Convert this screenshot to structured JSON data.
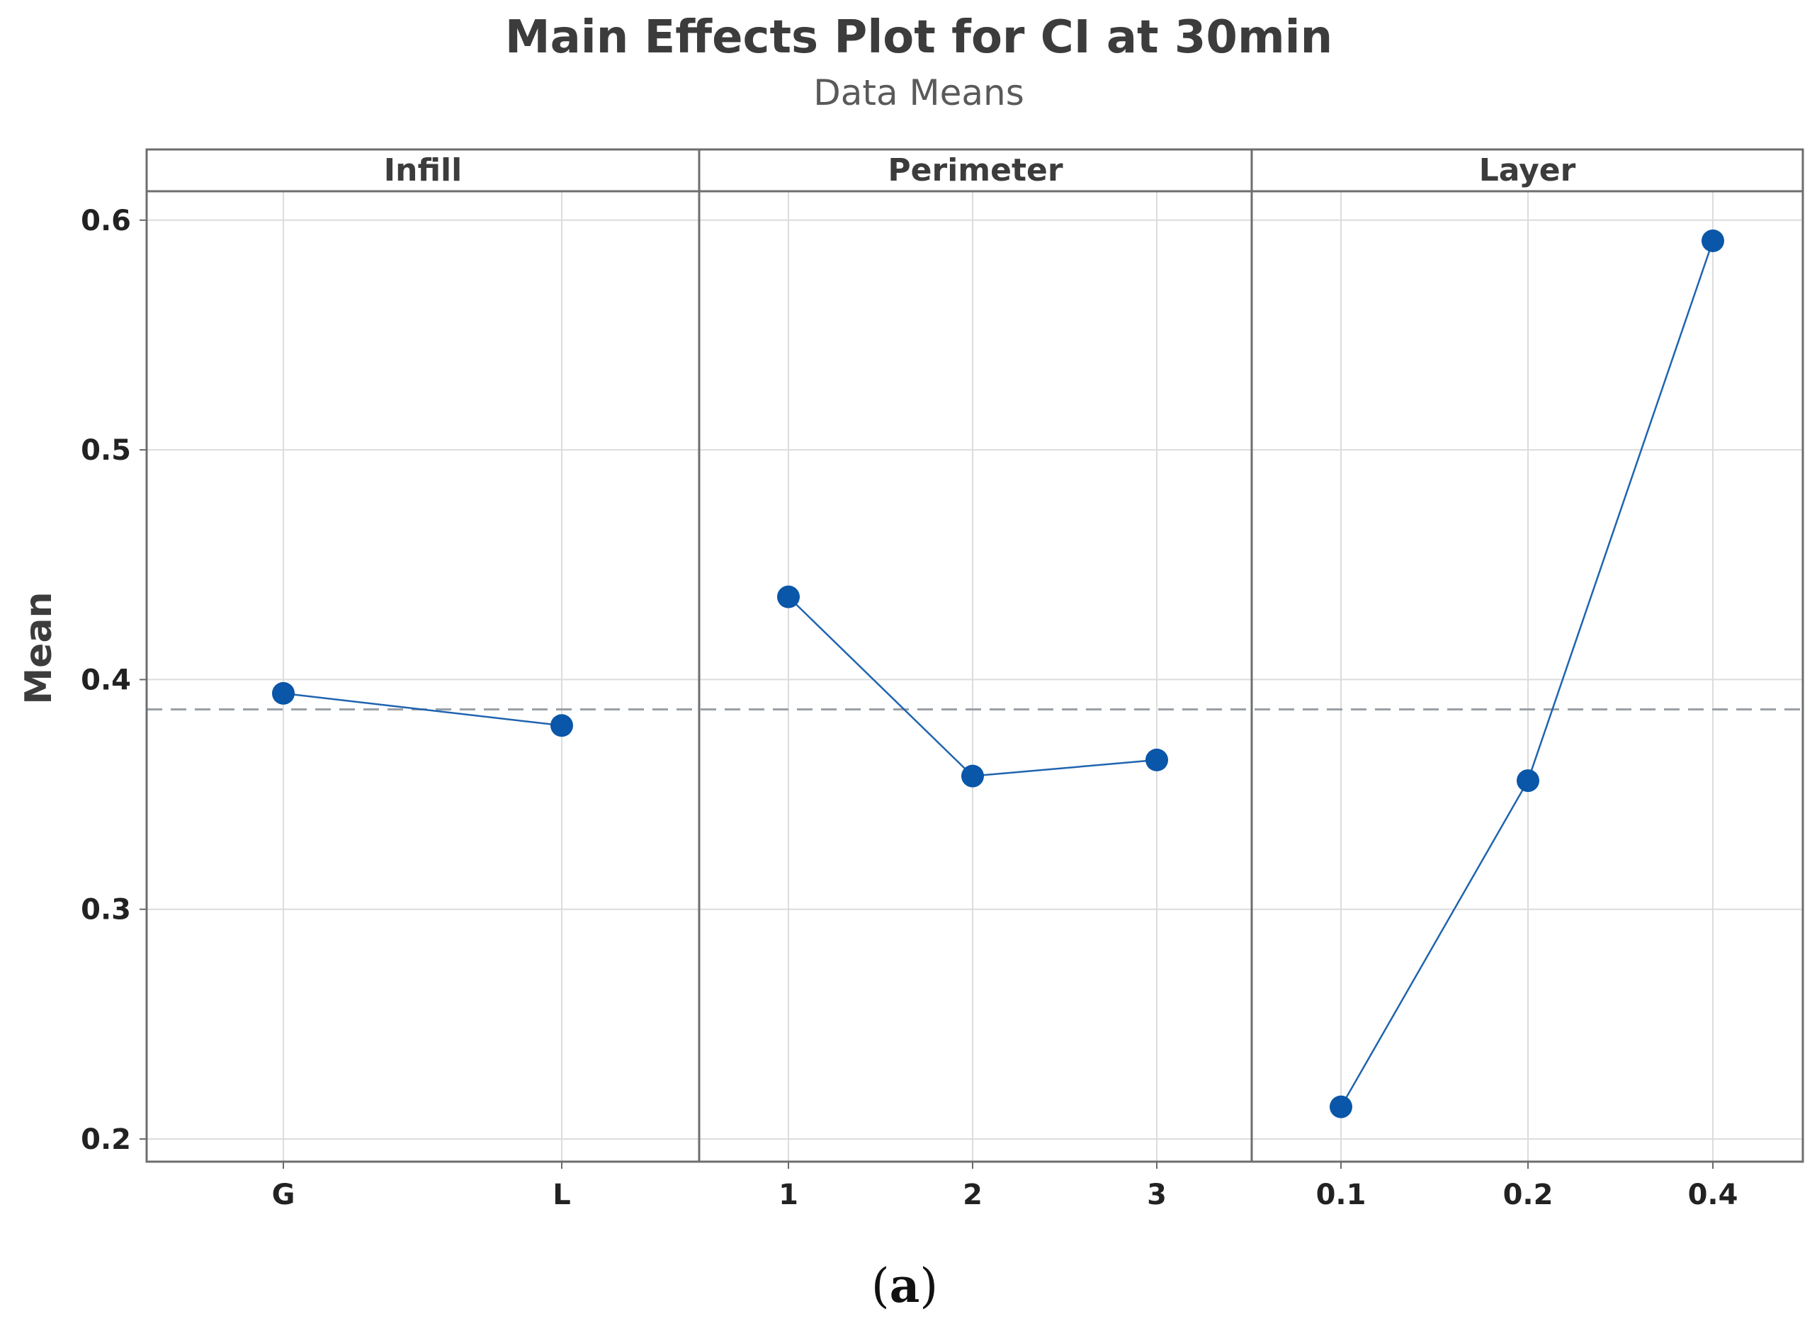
{
  "chart_data": {
    "type": "line",
    "title": "Main Effects Plot for CI at 30min",
    "subtitle": "Data Means",
    "ylabel": "Mean",
    "ylim": [
      0.19,
      0.62
    ],
    "yticks": [
      0.2,
      0.3,
      0.4,
      0.5,
      0.6
    ],
    "yticklabels": [
      "0.2",
      "0.3",
      "0.4",
      "0.5",
      "0.6"
    ],
    "overall_mean": 0.387,
    "grid": true,
    "point_color": "#0a56a8",
    "line_color": "#1f64b0",
    "mean_line_color": "#9aa0a6",
    "panels": [
      {
        "name": "Infill",
        "categories": [
          "G",
          "L"
        ],
        "values": [
          0.394,
          0.38
        ]
      },
      {
        "name": "Perimeter",
        "categories": [
          "1",
          "2",
          "3"
        ],
        "values": [
          0.436,
          0.358,
          0.365
        ]
      },
      {
        "name": "Layer",
        "categories": [
          "0.1",
          "0.2",
          "0.4"
        ],
        "values": [
          0.214,
          0.356,
          0.591
        ]
      }
    ]
  },
  "caption": {
    "open": "(",
    "letter": "a",
    "close": ")"
  }
}
